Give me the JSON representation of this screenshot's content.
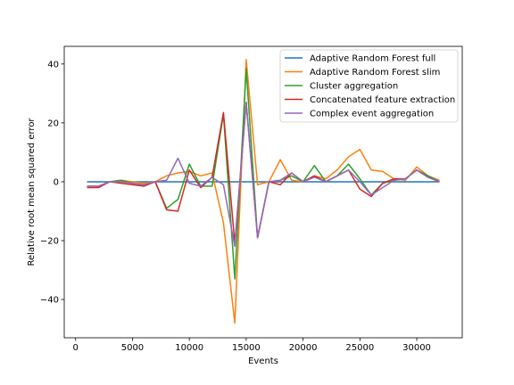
{
  "chart_data": {
    "type": "line",
    "xlabel": "Events",
    "ylabel": "Relative root mean squared error",
    "xlim": [
      -1000,
      34000
    ],
    "ylim": [
      -53,
      46
    ],
    "xticks": [
      0,
      5000,
      10000,
      15000,
      20000,
      25000,
      30000
    ],
    "xtick_labels": [
      "0",
      "5000",
      "10000",
      "15000",
      "20000",
      "25000",
      "30000"
    ],
    "yticks": [
      -40,
      -20,
      0,
      20,
      40
    ],
    "ytick_labels": [
      "−40",
      "−20",
      "0",
      "20",
      "40"
    ],
    "grid": false,
    "legend_position": "top-right",
    "x": [
      1000,
      2000,
      3000,
      4000,
      5000,
      6000,
      7000,
      8000,
      9000,
      10000,
      11000,
      12000,
      13000,
      14000,
      15000,
      16000,
      17000,
      18000,
      19000,
      20000,
      21000,
      22000,
      23000,
      24000,
      25000,
      26000,
      27000,
      28000,
      29000,
      30000,
      31000,
      32000
    ],
    "series": [
      {
        "name": "Adaptive Random Forest full",
        "color": "#1f77b4",
        "values": [
          0,
          0,
          0,
          0,
          0,
          0,
          0,
          0,
          0,
          0,
          0,
          0,
          0,
          0,
          0,
          0,
          0,
          0,
          0,
          0,
          0,
          0,
          0,
          0,
          0,
          0,
          0,
          0,
          0,
          0,
          0,
          0
        ]
      },
      {
        "name": "Adaptive Random Forest slim",
        "color": "#ff7f0e",
        "values": [
          -1.5,
          -1.5,
          0,
          0.5,
          0,
          -0.5,
          0,
          2,
          3,
          3.5,
          2,
          3,
          -14,
          -48,
          41.5,
          -1,
          0,
          7.5,
          0.5,
          0,
          2,
          1,
          4,
          8.5,
          11,
          4,
          3.5,
          1,
          0.5,
          5,
          2,
          0.5
        ]
      },
      {
        "name": "Cluster aggregation",
        "color": "#2ca02c",
        "values": [
          -1.5,
          -1.5,
          0,
          0.5,
          -0.5,
          -1,
          0,
          -9,
          -6,
          6,
          -1.5,
          -1.5,
          23,
          -33,
          38.5,
          -19,
          0,
          0.5,
          2,
          0,
          5.5,
          0,
          2,
          6,
          1,
          -4.5,
          -0.5,
          0.5,
          1,
          4,
          2,
          0
        ]
      },
      {
        "name": "Concatenated feature extraction",
        "color": "#d62728",
        "values": [
          -2,
          -2,
          0,
          -0.5,
          -1,
          -1.5,
          0,
          -9.5,
          -10,
          4,
          -2,
          1.5,
          23.5,
          -21,
          27,
          -19,
          0,
          -1,
          3,
          0,
          2,
          0,
          2,
          4,
          -2.5,
          -5,
          -0.5,
          1,
          1,
          4,
          1.5,
          0
        ]
      },
      {
        "name": "Complex event aggregation",
        "color": "#9467bd",
        "values": [
          -1.5,
          -1.5,
          0,
          0,
          -0.5,
          -1,
          0,
          0.5,
          8,
          -0.5,
          -1.5,
          1.5,
          -1,
          -22,
          27,
          -19,
          0,
          0.5,
          3,
          0,
          1.5,
          0,
          2,
          4,
          0,
          -4.5,
          -2,
          0.5,
          1,
          4,
          1.5,
          0
        ]
      }
    ]
  }
}
